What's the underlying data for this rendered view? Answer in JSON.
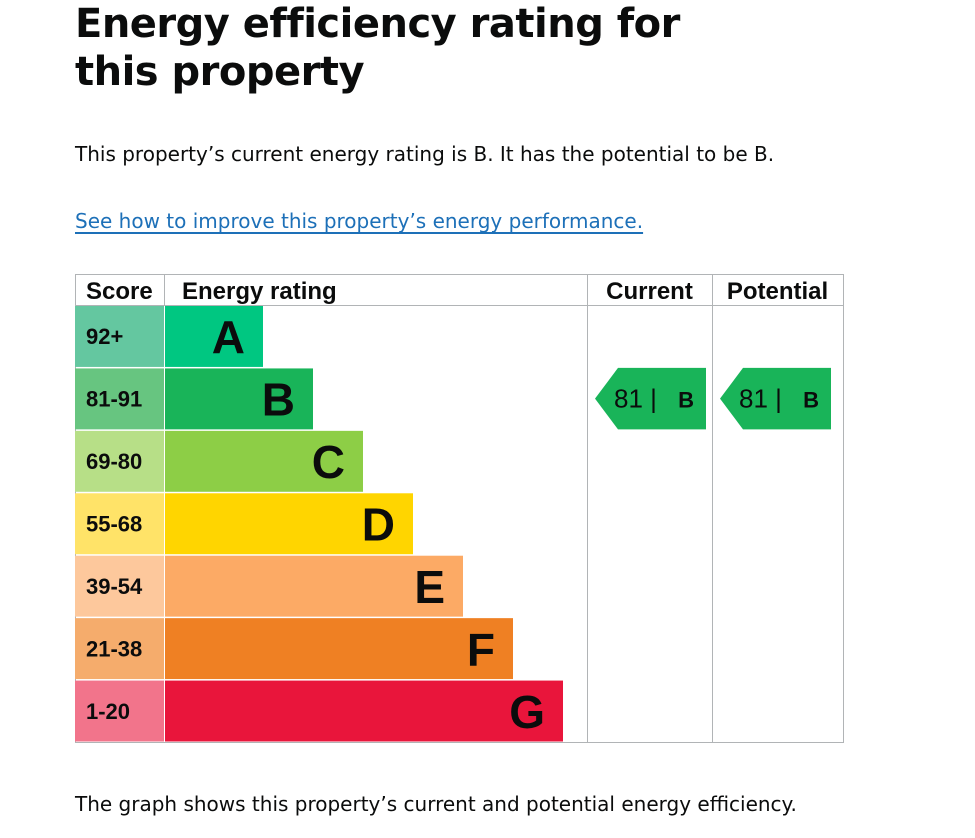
{
  "page": {
    "title": "Energy efficiency rating for this property",
    "summary": "This property’s current energy rating is B. It has the potential to be B.",
    "improve_link": "See how to improve this property’s energy performance.",
    "footer": "The graph shows this property’s current and potential energy efficiency."
  },
  "chart_data": {
    "type": "table",
    "headers": {
      "score": "Score",
      "rating": "Energy rating",
      "current": "Current",
      "potential": "Potential"
    },
    "bands": [
      {
        "score": "92+",
        "letter": "A",
        "color": "#008054",
        "score_bg": "#64c7a0",
        "bar_color": "#00c781"
      },
      {
        "score": "81-91",
        "letter": "B",
        "color": "#19b459",
        "score_bg": "#67c580",
        "bar_color": "#19b459"
      },
      {
        "score": "69-80",
        "letter": "C",
        "color": "#8dce46",
        "score_bg": "#b7df87",
        "bar_color": "#8dce46"
      },
      {
        "score": "55-68",
        "letter": "D",
        "color": "#ffd500",
        "score_bg": "#ffe368",
        "bar_color": "#ffd500"
      },
      {
        "score": "39-54",
        "letter": "E",
        "color": "#fcaa65",
        "score_bg": "#fdc89c",
        "bar_color": "#fcaa65"
      },
      {
        "score": "21-38",
        "letter": "F",
        "color": "#ef8023",
        "score_bg": "#f5ac6c",
        "bar_color": "#ef8023"
      },
      {
        "score": "1-20",
        "letter": "G",
        "color": "#e9153b",
        "score_bg": "#f2748b",
        "bar_color": "#e9153b"
      }
    ],
    "current": {
      "value": "81",
      "separator": "|",
      "letter": "B",
      "band_index": 1,
      "color": "#19b459"
    },
    "potential": {
      "value": "81",
      "separator": "|",
      "letter": "B",
      "band_index": 1,
      "color": "#19b459"
    }
  }
}
